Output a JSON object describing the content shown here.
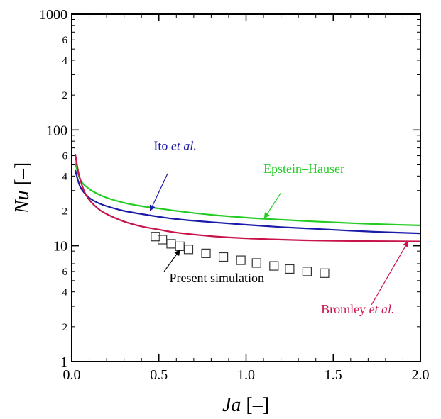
{
  "chart_data": {
    "type": "line",
    "xlabel": {
      "var": "Ja",
      "unit": " [–]"
    },
    "ylabel": {
      "var": "Nu",
      "unit": " [–]"
    },
    "xlim": [
      0,
      2
    ],
    "ylim": [
      1,
      1000
    ],
    "yscale": "log",
    "x_ticks": [
      "0.0",
      "0.5",
      "1.0",
      "1.5",
      "2.0"
    ],
    "y_major_ticks": [
      {
        "value": 1,
        "label": "1"
      },
      {
        "value": 10,
        "label": "10"
      },
      {
        "value": 100,
        "label": "100"
      },
      {
        "value": 1000,
        "label": "1000"
      }
    ],
    "y_minor_ticks": [
      {
        "value": 2,
        "label": "2"
      },
      {
        "value": 4,
        "label": "4"
      },
      {
        "value": 6,
        "label": "6"
      },
      {
        "value": 20,
        "label": "2"
      },
      {
        "value": 40,
        "label": "4"
      },
      {
        "value": 60,
        "label": "6"
      },
      {
        "value": 200,
        "label": "2"
      },
      {
        "value": 400,
        "label": "4"
      },
      {
        "value": 600,
        "label": "6"
      }
    ],
    "series": [
      {
        "name_parts": [
          "Epstein–Hauser"
        ],
        "color": "#22cc22",
        "x": [
          0.02,
          0.05,
          0.1,
          0.15,
          0.2,
          0.3,
          0.4,
          0.5,
          0.6,
          0.8,
          1.0,
          1.2,
          1.4,
          1.6,
          1.8,
          2.0
        ],
        "y": [
          52,
          37,
          31,
          28,
          26,
          23.5,
          22,
          21,
          20,
          18.5,
          17.5,
          16.8,
          16.2,
          15.7,
          15.3,
          15
        ]
      },
      {
        "name_parts": [
          "Ito ",
          "et al."
        ],
        "color": "#1a1aa8",
        "x": [
          0.02,
          0.05,
          0.1,
          0.15,
          0.2,
          0.3,
          0.4,
          0.5,
          0.6,
          0.8,
          1.0,
          1.2,
          1.4,
          1.6,
          1.8,
          2.0
        ],
        "y": [
          45,
          32,
          26,
          23.5,
          22,
          20,
          18.8,
          17.8,
          17,
          16,
          15.2,
          14.5,
          14,
          13.5,
          13.1,
          12.8
        ]
      },
      {
        "name_parts": [
          "Bromley ",
          "et al."
        ],
        "color": "#c8144a",
        "x": [
          0.02,
          0.04,
          0.07,
          0.1,
          0.15,
          0.2,
          0.3,
          0.4,
          0.5,
          0.6,
          0.8,
          1.0,
          1.2,
          1.4,
          1.6,
          1.8,
          2.0
        ],
        "y": [
          62,
          42,
          30,
          25,
          21,
          18.8,
          16.2,
          14.7,
          13.8,
          13,
          12.1,
          11.6,
          11.3,
          11.1,
          11,
          10.95,
          10.9
        ]
      }
    ],
    "scatter": {
      "name": "Present simulation",
      "marker": "open-square",
      "x": [
        0.48,
        0.52,
        0.57,
        0.62,
        0.67,
        0.77,
        0.87,
        0.97,
        1.06,
        1.16,
        1.25,
        1.35,
        1.45
      ],
      "y": [
        12,
        11.3,
        10.4,
        9.9,
        9.3,
        8.6,
        8.0,
        7.5,
        7.1,
        6.7,
        6.3,
        6.0,
        5.8
      ]
    },
    "annotations": [
      {
        "series": 0,
        "label_at": [
          1.1,
          42.5
        ],
        "arrow_from": [
          1.2,
          28.7
        ],
        "arrow_to": [
          1.105,
          17.3
        ]
      },
      {
        "series": 1,
        "label_at": [
          0.47,
          67
        ],
        "arrow_from": [
          0.55,
          42
        ],
        "arrow_to": [
          0.45,
          20.1
        ]
      },
      {
        "series": 2,
        "label_at": [
          1.43,
          2.6
        ],
        "arrow_from": [
          1.72,
          3.1
        ],
        "arrow_to": [
          1.93,
          10.9
        ]
      },
      {
        "series": "scatter",
        "label_at": [
          0.56,
          4.85
        ],
        "arrow_from": [
          0.53,
          6.0
        ],
        "arrow_to": [
          0.62,
          9.2
        ]
      }
    ]
  }
}
